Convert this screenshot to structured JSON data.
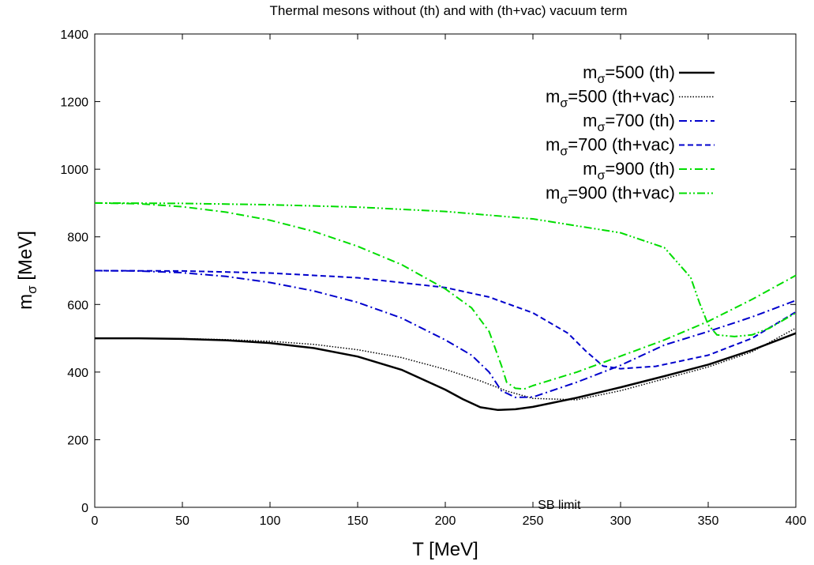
{
  "chart_data": {
    "type": "line",
    "title": "Thermal mesons without (th) and with (th+vac) vacuum term",
    "xlabel": {
      "main": "T [MeV]"
    },
    "ylabel": {
      "base": "m",
      "sub": "σ",
      "rest": " [MeV]"
    },
    "xlim": [
      0,
      400
    ],
    "ylim": [
      0,
      1400
    ],
    "xticks": [
      0,
      50,
      100,
      150,
      200,
      250,
      300,
      350,
      400
    ],
    "yticks": [
      0,
      200,
      400,
      600,
      800,
      1000,
      1200,
      1400
    ],
    "grid": false,
    "legend_position": "top-right",
    "annotations": [
      {
        "text": "SB limit",
        "x": 265,
        "y": 0
      }
    ],
    "series": [
      {
        "legend": {
          "base": "m",
          "sub": "σ",
          "rest": "=500 (th)"
        },
        "color": "#000000",
        "style": "solid",
        "width": 2.5,
        "x": [
          0,
          25,
          50,
          75,
          100,
          125,
          150,
          175,
          200,
          210,
          220,
          230,
          240,
          250,
          275,
          300,
          325,
          350,
          375,
          400
        ],
        "y": [
          500,
          500,
          498,
          494,
          486,
          471,
          446,
          407,
          348,
          320,
          296,
          288,
          290,
          297,
          324,
          355,
          388,
          422,
          465,
          515
        ]
      },
      {
        "legend": {
          "base": "m",
          "sub": "σ",
          "rest": "=500 (th+vac)"
        },
        "color": "#000000",
        "style": "dotted",
        "width": 1.5,
        "x": [
          0,
          25,
          50,
          75,
          100,
          125,
          150,
          175,
          200,
          220,
          235,
          250,
          275,
          300,
          325,
          350,
          375,
          400
        ],
        "y": [
          500,
          500,
          499,
          496,
          491,
          482,
          466,
          443,
          408,
          374,
          344,
          322,
          318,
          345,
          380,
          415,
          460,
          530
        ]
      },
      {
        "legend": {
          "base": "m",
          "sub": "σ",
          "rest": "=700 (th)"
        },
        "color": "#0000cc",
        "style": "dashdot",
        "width": 2,
        "x": [
          0,
          25,
          50,
          75,
          100,
          125,
          150,
          175,
          200,
          215,
          225,
          232,
          240,
          250,
          275,
          300,
          325,
          350,
          375,
          400
        ],
        "y": [
          700,
          699,
          694,
          683,
          665,
          640,
          606,
          560,
          495,
          450,
          400,
          345,
          325,
          326,
          370,
          420,
          480,
          520,
          563,
          612
        ]
      },
      {
        "legend": {
          "base": "m",
          "sub": "σ",
          "rest": "=700 (th+vac)"
        },
        "color": "#0000cc",
        "style": "dashed",
        "width": 2,
        "x": [
          0,
          50,
          100,
          150,
          200,
          225,
          250,
          270,
          280,
          290,
          300,
          320,
          350,
          375,
          400
        ],
        "y": [
          700,
          699,
          693,
          679,
          650,
          622,
          575,
          515,
          463,
          418,
          410,
          417,
          450,
          500,
          578
        ]
      },
      {
        "legend": {
          "base": "m",
          "sub": "σ",
          "rest": "=900 (th)"
        },
        "color": "#00dd00",
        "style": "dashdot",
        "width": 2,
        "x": [
          0,
          25,
          50,
          75,
          100,
          125,
          150,
          175,
          200,
          215,
          225,
          232,
          235,
          240,
          245,
          250,
          275,
          300,
          325,
          350,
          375,
          400
        ],
        "y": [
          900,
          898,
          889,
          873,
          849,
          816,
          772,
          718,
          646,
          590,
          520,
          420,
          370,
          352,
          350,
          360,
          400,
          447,
          495,
          550,
          615,
          686
        ]
      },
      {
        "legend": {
          "base": "m",
          "sub": "σ",
          "rest": "=900 (th+vac)"
        },
        "color": "#00dd00",
        "style": "dashdotdot",
        "width": 2,
        "x": [
          0,
          50,
          100,
          150,
          200,
          250,
          300,
          325,
          340,
          345,
          350,
          355,
          365,
          375,
          385,
          400
        ],
        "y": [
          900,
          899,
          895,
          888,
          875,
          853,
          812,
          768,
          680,
          605,
          540,
          510,
          505,
          510,
          530,
          575
        ]
      }
    ]
  }
}
